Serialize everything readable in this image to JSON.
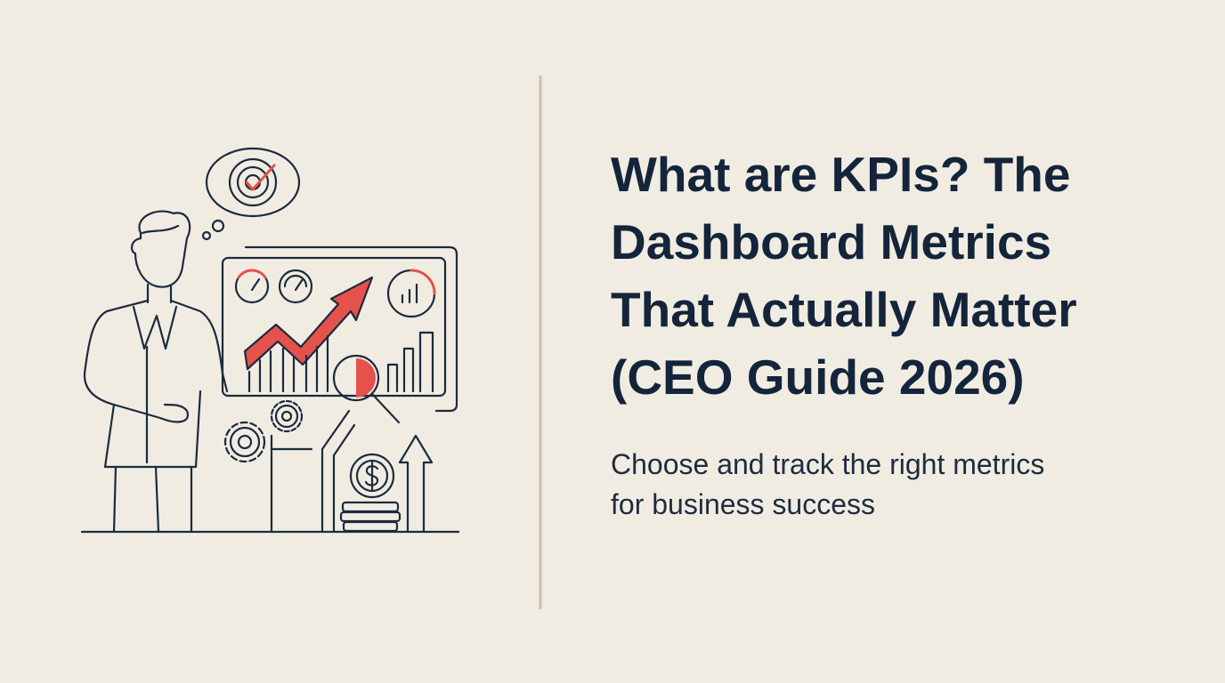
{
  "header": {
    "title_lines": [
      "What are KPIs? The",
      "Dashboard Metrics",
      "That Actually Matter",
      "(CEO Guide 2026)"
    ],
    "subtitle_lines": [
      "Choose and track the right metrics",
      "for business success"
    ]
  }
}
